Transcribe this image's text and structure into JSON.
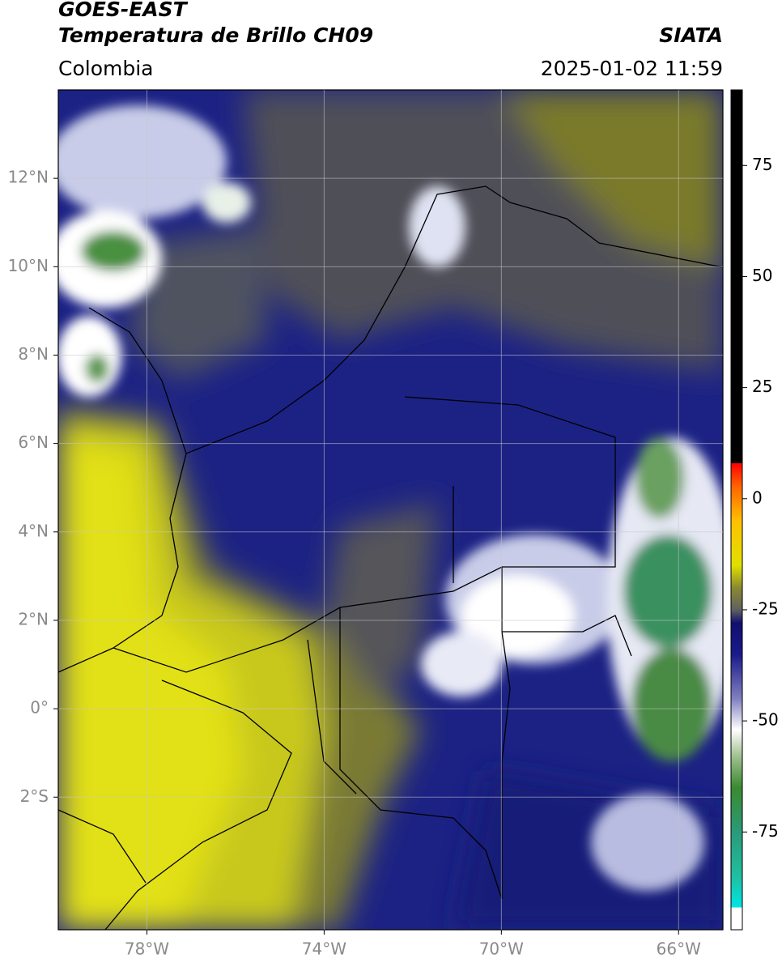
{
  "header": {
    "title": "GOES-EAST",
    "subtitle": "Temperatura de Brillo CH09",
    "source": "SIATA",
    "region": "Colombia",
    "datetime": "2025-01-02 11:59"
  },
  "map": {
    "xlim": [
      -80,
      -65
    ],
    "ylim": [
      -5,
      14
    ],
    "xticks": [
      {
        "value": -78,
        "label": "78°W"
      },
      {
        "value": -74,
        "label": "74°W"
      },
      {
        "value": -70,
        "label": "70°W"
      },
      {
        "value": -66,
        "label": "66°W"
      }
    ],
    "yticks": [
      {
        "value": -2,
        "label": "2°S"
      },
      {
        "value": 0,
        "label": "0°"
      },
      {
        "value": 2,
        "label": "2°N"
      },
      {
        "value": 4,
        "label": "4°N"
      },
      {
        "value": 6,
        "label": "6°N"
      },
      {
        "value": 8,
        "label": "8°N"
      },
      {
        "value": 10,
        "label": "10°N"
      },
      {
        "value": 12,
        "label": "12°N"
      }
    ],
    "grid": true
  },
  "colorbar": {
    "lim": [
      -97,
      92
    ],
    "ticks": [
      75,
      50,
      25,
      0,
      -25,
      -50,
      -75
    ],
    "stops": [
      {
        "value": -97,
        "color": "#ffffff"
      },
      {
        "value": -92,
        "color": "#ffffff"
      },
      {
        "value": -92,
        "color": "#00e5e5"
      },
      {
        "value": -85,
        "color": "#20bfa0"
      },
      {
        "value": -75,
        "color": "#2a9a7a"
      },
      {
        "value": -65,
        "color": "#3a8a30"
      },
      {
        "value": -58,
        "color": "#a0c090"
      },
      {
        "value": -52,
        "color": "#ffffff"
      },
      {
        "value": -45,
        "color": "#8080c0"
      },
      {
        "value": -35,
        "color": "#1a1a8a"
      },
      {
        "value": -28,
        "color": "#101070"
      },
      {
        "value": -25,
        "color": "#606060"
      },
      {
        "value": -20,
        "color": "#8a8a30"
      },
      {
        "value": -15,
        "color": "#e0e000"
      },
      {
        "value": -5,
        "color": "#ffc000"
      },
      {
        "value": 3,
        "color": "#ff6000"
      },
      {
        "value": 8,
        "color": "#ff0000"
      },
      {
        "value": 8,
        "color": "#000000"
      },
      {
        "value": 92,
        "color": "#000000"
      }
    ]
  }
}
